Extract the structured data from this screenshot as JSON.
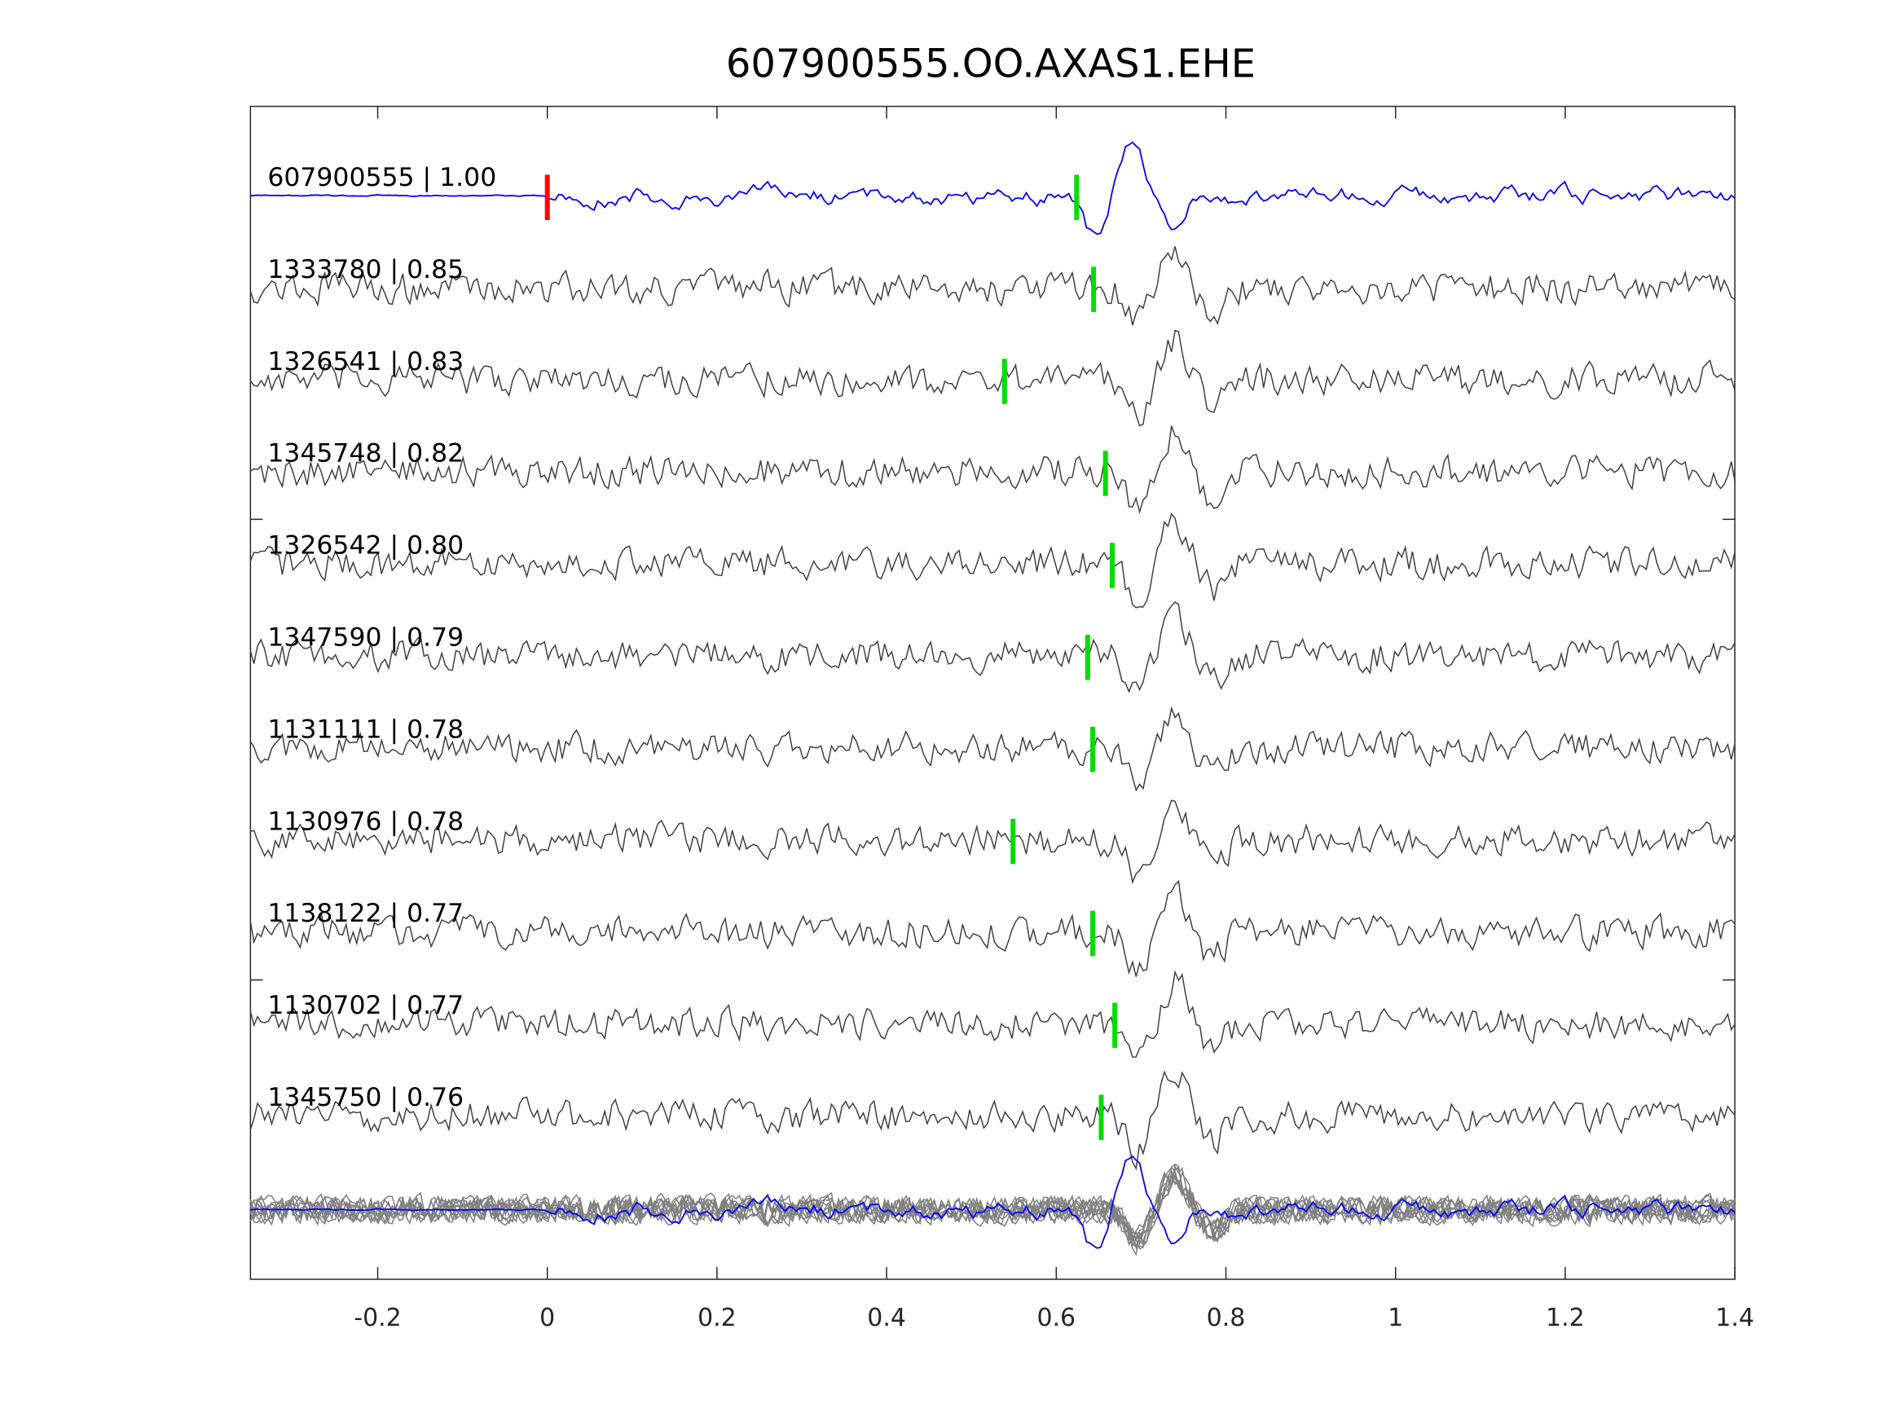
{
  "chart_data": {
    "type": "line",
    "title": "607900555.OO.AXAS1.EHE",
    "xlabel": "",
    "ylabel": "",
    "xlim": [
      -0.35,
      1.4
    ],
    "xticks": [
      -0.2,
      0,
      0.2,
      0.4,
      0.6,
      0.8,
      1,
      1.2,
      1.4
    ],
    "xtick_labels": [
      "-0.2",
      "0",
      "0.2",
      "0.4",
      "0.6",
      "0.8",
      "1",
      "1.2",
      "1.4"
    ],
    "grid": false,
    "colors": {
      "template": "#0000ff",
      "trace": "#404040",
      "stack": "#808080",
      "template_pick": "#ff0000",
      "pick": "#00dd00"
    },
    "traces": [
      {
        "id": "607900555",
        "cc": "1.00",
        "label": "607900555 | 1.00",
        "pick": 0.0,
        "template": true
      },
      {
        "id": "1333780",
        "cc": "0.85",
        "label": "1333780 | 0.85",
        "pick": 0.644
      },
      {
        "id": "1326541",
        "cc": "0.83",
        "label": "1326541 | 0.83",
        "pick": 0.539
      },
      {
        "id": "1345748",
        "cc": "0.82",
        "label": "1345748 | 0.82",
        "pick": 0.658
      },
      {
        "id": "1326542",
        "cc": "0.80",
        "label": "1326542 | 0.80",
        "pick": 0.666
      },
      {
        "id": "1347590",
        "cc": "0.79",
        "label": "1347590 | 0.79",
        "pick": 0.637
      },
      {
        "id": "1131111",
        "cc": "0.78",
        "label": "1131111 | 0.78",
        "pick": 0.643
      },
      {
        "id": "1130976",
        "cc": "0.78",
        "label": "1130976 | 0.78",
        "pick": 0.549
      },
      {
        "id": "1138122",
        "cc": "0.77",
        "label": "1138122 | 0.77",
        "pick": 0.643
      },
      {
        "id": "1130702",
        "cc": "0.77",
        "label": "1130702 | 0.77",
        "pick": 0.669
      },
      {
        "id": "1345750",
        "cc": "0.76",
        "label": "1345750 | 0.76",
        "pick": 0.653
      }
    ],
    "template_extra_pick": 0.624
  }
}
